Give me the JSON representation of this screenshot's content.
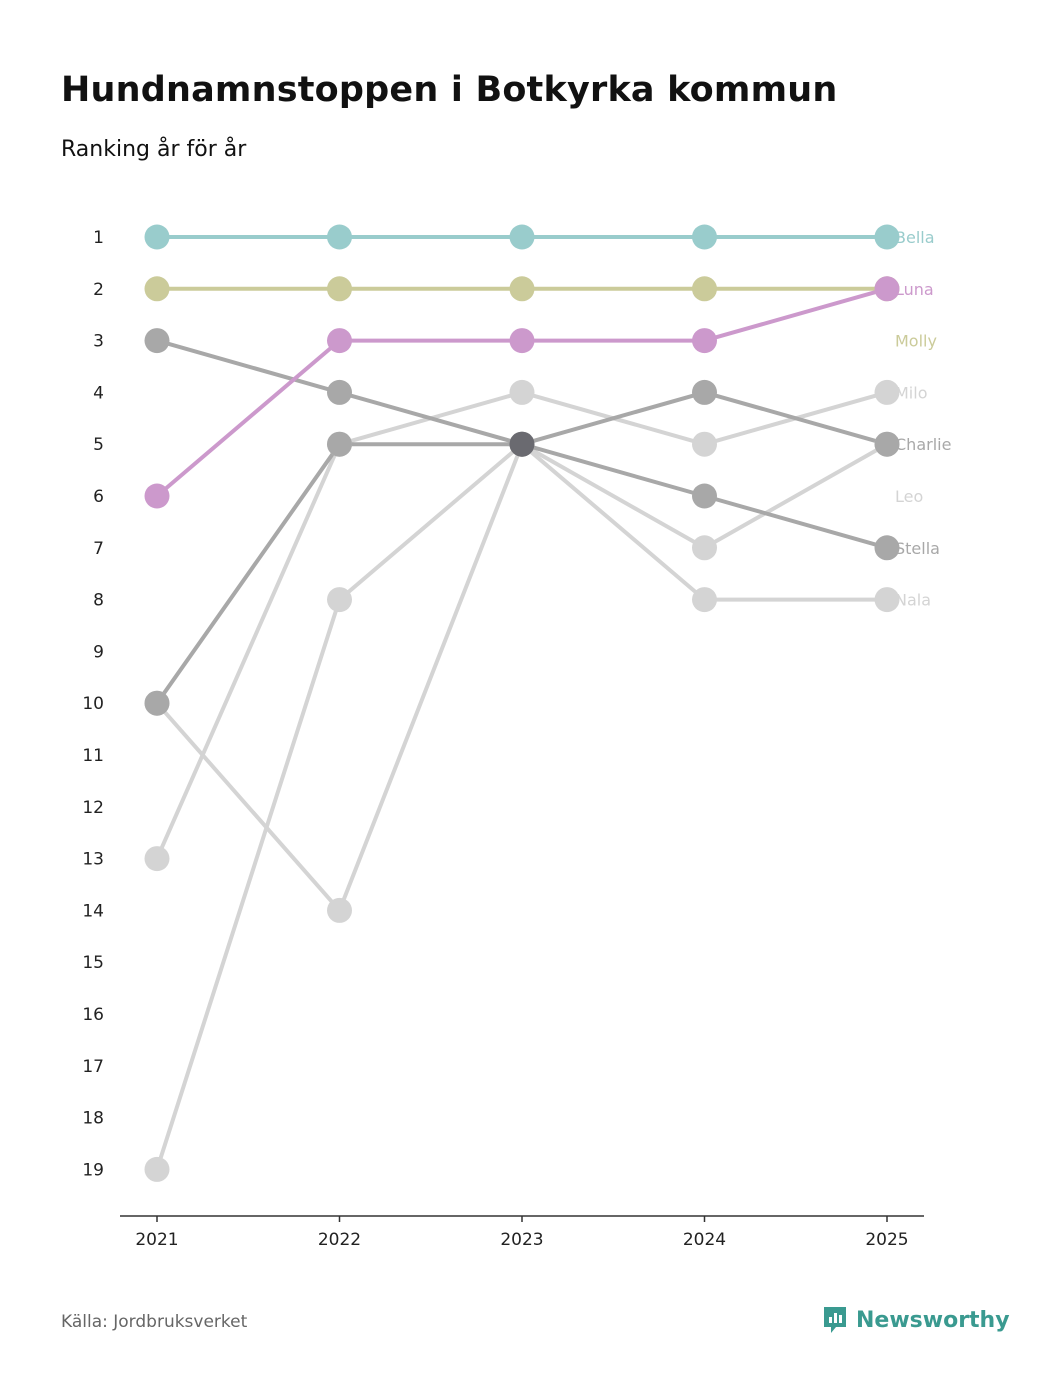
{
  "title": "Hundnamnstoppen i Botkyrka kommun",
  "subtitle": "Ranking år för år",
  "source": "Källa: Jordbruksverket",
  "brand": "Newsworthy",
  "colors": {
    "brand": "#3a9a90"
  },
  "chart_data": {
    "type": "line",
    "x": [
      "2021",
      "2022",
      "2023",
      "2024",
      "2025"
    ],
    "y_ticks": [
      1,
      2,
      3,
      4,
      5,
      6,
      7,
      8,
      9,
      10,
      11,
      12,
      13,
      14,
      15,
      16,
      17,
      18,
      19
    ],
    "y_reversed": true,
    "ylim": [
      1,
      19
    ],
    "series": [
      {
        "name": "Nala",
        "values": [
          10,
          14,
          5,
          8,
          8
        ],
        "color": "#d4d4d4"
      },
      {
        "name": "Leo",
        "values": [
          19,
          8,
          5,
          7,
          5
        ],
        "color": "#d4d4d4"
      },
      {
        "name": "Milo",
        "values": [
          13,
          5,
          4,
          5,
          4
        ],
        "color": "#d4d4d4"
      },
      {
        "name": "Stella",
        "values": [
          3,
          4,
          5,
          6,
          7
        ],
        "color": "#a8a8a8"
      },
      {
        "name": "Charlie",
        "values": [
          10,
          5,
          5,
          4,
          5
        ],
        "color": "#a8a8a8"
      },
      {
        "name": "Molly",
        "values": [
          2,
          2,
          2,
          2,
          2
        ],
        "color": "#cbcb9a"
      },
      {
        "name": "Luna",
        "values": [
          6,
          3,
          3,
          3,
          2
        ],
        "color": "#cc99cc"
      },
      {
        "name": "Bella",
        "values": [
          1,
          1,
          1,
          1,
          1
        ],
        "color": "#99cccc"
      }
    ],
    "end_labels": [
      {
        "name": "Bella",
        "rank": 1,
        "color": "#99cccc"
      },
      {
        "name": "Luna",
        "rank": 2,
        "color": "#cc99cc"
      },
      {
        "name": "Molly",
        "rank": 3,
        "color": "#cbcb9a"
      },
      {
        "name": "Milo",
        "rank": 4,
        "color": "#d4d4d4"
      },
      {
        "name": "Charlie",
        "rank": 5,
        "color": "#a8a8a8"
      },
      {
        "name": "Leo",
        "rank": 6,
        "color": "#d4d4d4"
      },
      {
        "name": "Stella",
        "rank": 7,
        "color": "#a8a8a8"
      },
      {
        "name": "Nala",
        "rank": 8,
        "color": "#d4d4d4"
      }
    ]
  }
}
